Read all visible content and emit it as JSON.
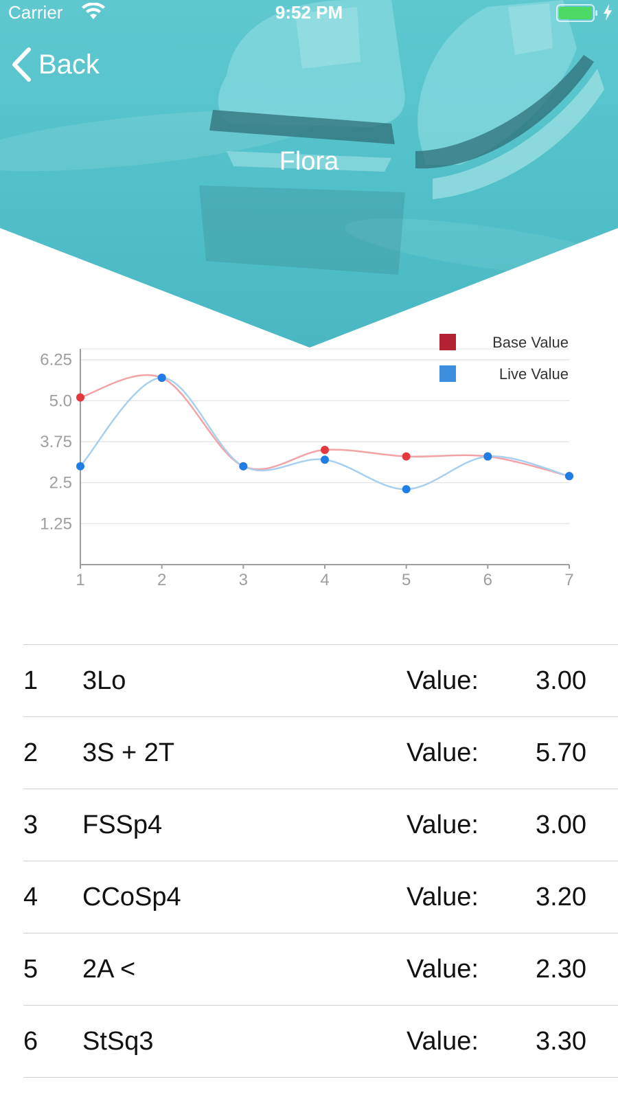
{
  "status_bar": {
    "carrier": "Carrier",
    "time": "9:52 PM"
  },
  "nav": {
    "back_label": "Back"
  },
  "header": {
    "title": "Flora"
  },
  "colors": {
    "header_teal": "#55c2ca",
    "base_series": "#e53940",
    "base_line": "#f3a3a6",
    "live_series": "#1f7de6",
    "live_line": "#a9cfef",
    "legend_base": "#b22230",
    "legend_live": "#3c8fde"
  },
  "chart_data": {
    "type": "line",
    "x": [
      1,
      2,
      3,
      4,
      5,
      6,
      7
    ],
    "y_ticks": [
      "1.25",
      "2.5",
      "3.75",
      "5.0",
      "6.25"
    ],
    "x_ticks": [
      "1",
      "2",
      "3",
      "4",
      "5",
      "6",
      "7"
    ],
    "ylim": [
      0,
      6.25
    ],
    "smooth": true,
    "grid": "horizontal",
    "legend_position": "top-right",
    "series": [
      {
        "name": "Base Value",
        "color": "#e53940",
        "values": [
          5.1,
          5.7,
          3.0,
          3.5,
          3.3,
          3.3,
          2.7
        ]
      },
      {
        "name": "Live Value",
        "color": "#1f7de6",
        "values": [
          3.0,
          5.7,
          3.0,
          3.2,
          2.3,
          3.3,
          2.7
        ]
      }
    ]
  },
  "elements": [
    {
      "num": "1",
      "code": "3Lo",
      "label": "Value:",
      "value": "3.00"
    },
    {
      "num": "2",
      "code": "3S + 2T",
      "label": "Value:",
      "value": "5.70"
    },
    {
      "num": "3",
      "code": "FSSp4",
      "label": "Value:",
      "value": "3.00"
    },
    {
      "num": "4",
      "code": "CCoSp4",
      "label": "Value:",
      "value": "3.20"
    },
    {
      "num": "5",
      "code": "2A <",
      "label": "Value:",
      "value": "2.30"
    },
    {
      "num": "6",
      "code": "StSq3",
      "label": "Value:",
      "value": "3.30"
    }
  ]
}
